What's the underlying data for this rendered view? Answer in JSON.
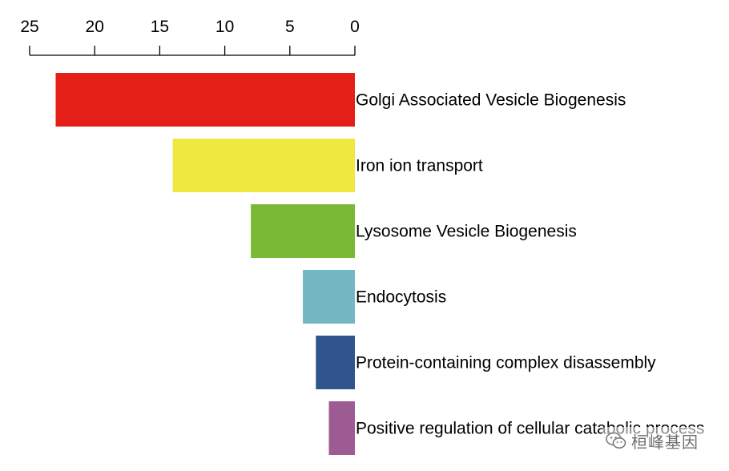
{
  "chart_data": {
    "type": "bar",
    "orientation": "horizontal-reversed",
    "categories": [
      "Golgi Associated Vesicle Biogenesis",
      "Iron ion transport",
      "Lysosome Vesicle Biogenesis",
      "Endocytosis",
      "Protein-containing complex disassembly",
      "Positive regulation of cellular catabolic process"
    ],
    "values": [
      23,
      14,
      8,
      4,
      3,
      2
    ],
    "colors": [
      "#e41f17",
      "#ede941",
      "#7ab935",
      "#73b7c2",
      "#30548c",
      "#9d5b94"
    ],
    "xticks": [
      25,
      20,
      15,
      10,
      5,
      0
    ],
    "xlim": [
      0,
      25
    ],
    "axis_position": "top",
    "grid": false,
    "title": "",
    "xlabel": "",
    "ylabel": ""
  },
  "watermark": {
    "text": "桓峰基因",
    "icon": "wechat-icon"
  }
}
